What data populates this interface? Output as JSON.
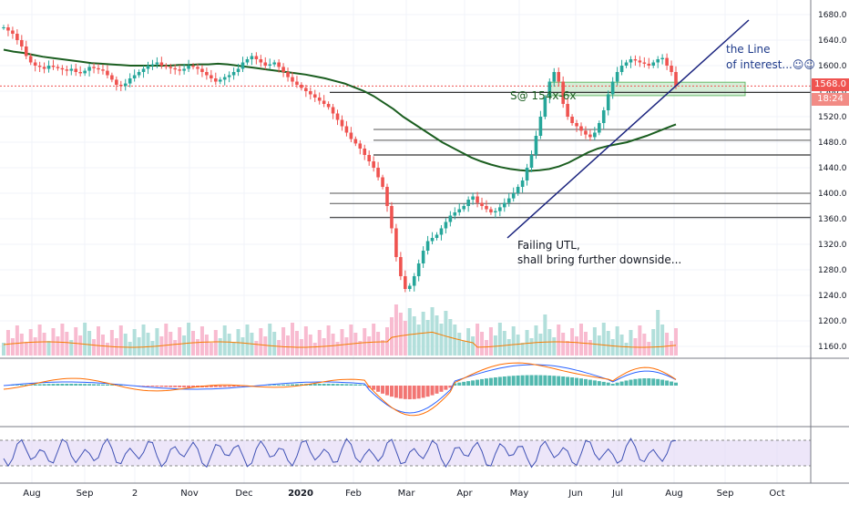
{
  "chart_data": {
    "type": "candlestick",
    "x_labels": [
      "Aug",
      "Sep",
      "2",
      "Nov",
      "Dec",
      "2020",
      "Feb",
      "Mar",
      "Apr",
      "May",
      "Jun",
      "Jul",
      "Aug",
      "Sep",
      "Oct"
    ],
    "price_axis": {
      "ticks": [
        "1680.0",
        "1640.0",
        "1600.0",
        "1560.0",
        "1520.0",
        "1480.0",
        "1440.0",
        "1400.0",
        "1360.0",
        "1320.0",
        "1280.0",
        "1240.0",
        "1200.0",
        "1160.0"
      ],
      "range": [
        1145,
        1695
      ]
    },
    "last_price": "1568.0",
    "countdown": "18:24",
    "colors": {
      "up": "#26a69a",
      "down": "#ef5350",
      "ma": "#1b5e20",
      "trendline": "#1a237e",
      "zone": "#a5d6a7",
      "vol_ma": "#f57c00",
      "rsi_band": "#e1d5f5",
      "rsi_line": "#3f51b5"
    },
    "horizontal_levels": [
      1568,
      1500,
      1483,
      1460,
      1400,
      1384,
      1362
    ],
    "support_zone": {
      "from": 1553,
      "to": 1574
    },
    "trendline": {
      "start": [
        1357,
        "May"
      ],
      "end": [
        1670,
        "Sep"
      ]
    },
    "annotations": {
      "line_note_1": "the Line",
      "line_note_2": "of interest...☺☺",
      "zone_note": "S@ 154x-6x",
      "utl_note_1": "Failing UTL,",
      "utl_note_2": "shall bring further downside..."
    },
    "closes": [
      1660,
      1655,
      1650,
      1640,
      1630,
      1615,
      1605,
      1600,
      1598,
      1595,
      1600,
      1598,
      1596,
      1594,
      1592,
      1595,
      1590,
      1588,
      1592,
      1598,
      1596,
      1594,
      1592,
      1585,
      1578,
      1570,
      1568,
      1572,
      1580,
      1585,
      1590,
      1595,
      1600,
      1602,
      1605,
      1600,
      1598,
      1596,
      1594,
      1592,
      1595,
      1600,
      1598,
      1595,
      1590,
      1585,
      1580,
      1575,
      1578,
      1582,
      1585,
      1590,
      1595,
      1605,
      1610,
      1615,
      1610,
      1605,
      1600,
      1602,
      1605,
      1598,
      1590,
      1582,
      1575,
      1570,
      1565,
      1560,
      1555,
      1550,
      1545,
      1540,
      1535,
      1525,
      1515,
      1505,
      1495,
      1485,
      1478,
      1470,
      1460,
      1450,
      1440,
      1425,
      1410,
      1380,
      1345,
      1300,
      1270,
      1250,
      1255,
      1270,
      1290,
      1310,
      1325,
      1330,
      1335,
      1345,
      1355,
      1365,
      1370,
      1375,
      1380,
      1390,
      1395,
      1385,
      1380,
      1375,
      1370,
      1372,
      1378,
      1385,
      1392,
      1400,
      1410,
      1420,
      1440,
      1460,
      1490,
      1520,
      1550,
      1575,
      1590,
      1575,
      1540,
      1520,
      1510,
      1505,
      1498,
      1492,
      1488,
      1495,
      1510,
      1530,
      1555,
      1575,
      1590,
      1600,
      1605,
      1610,
      1608,
      1605,
      1603,
      1600,
      1605,
      1610,
      1612,
      1600,
      1590,
      1568
    ],
    "ma_values": [
      1625,
      1622,
      1620,
      1617,
      1614,
      1612,
      1610,
      1608,
      1606,
      1604,
      1603,
      1602,
      1601,
      1600,
      1600,
      1600,
      1600,
      1600,
      1601,
      1601,
      1602,
      1602,
      1603,
      1602,
      1600,
      1598,
      1596,
      1594,
      1592,
      1590,
      1588,
      1586,
      1583,
      1580,
      1576,
      1572,
      1566,
      1560,
      1552,
      1542,
      1532,
      1520,
      1510,
      1500,
      1490,
      1480,
      1472,
      1464,
      1456,
      1450,
      1445,
      1441,
      1438,
      1436,
      1435,
      1436,
      1438,
      1442,
      1448,
      1456,
      1464,
      1470,
      1474,
      1477,
      1480,
      1485,
      1490,
      1496,
      1502,
      1508
    ]
  }
}
